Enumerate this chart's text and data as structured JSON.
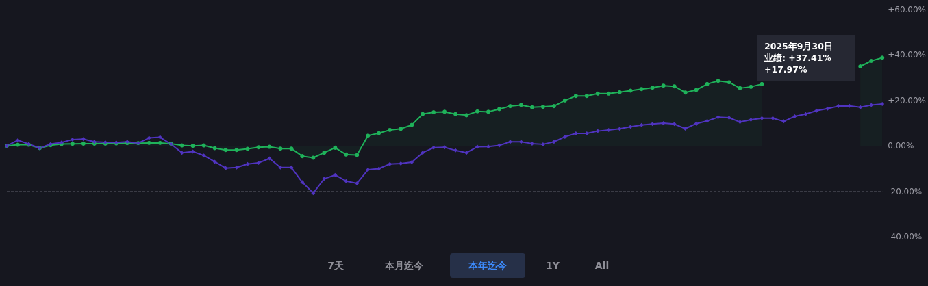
{
  "chart_data": {
    "type": "line",
    "categories": [
      null,
      null,
      null,
      null,
      null,
      null,
      null,
      null,
      null,
      null,
      null,
      null,
      null,
      null,
      null,
      null,
      null,
      null,
      null,
      null,
      null,
      null,
      null,
      null,
      null,
      null,
      null,
      null,
      null,
      null,
      null,
      null,
      null,
      null,
      null,
      null,
      null,
      null,
      null,
      null,
      null,
      null,
      null,
      null,
      null,
      null,
      null,
      null,
      null,
      null,
      null,
      null,
      null,
      null,
      null,
      null,
      null,
      null,
      null,
      null,
      null,
      null,
      null,
      null,
      null,
      null,
      null,
      null,
      null,
      null,
      null,
      null,
      null,
      null,
      null,
      null,
      null,
      null,
      null,
      null,
      null
    ],
    "series": [
      {
        "type": "area",
        "color": "#1fb25a",
        "marker": "circle",
        "values": [
          0,
          0.5,
          0.5,
          -1,
          0.3,
          0.8,
          0.9,
          1,
          1,
          1,
          1.1,
          1.2,
          1.2,
          1.3,
          1.3,
          1,
          0.2,
          0,
          0.2,
          -1,
          -1.8,
          -1.8,
          -1.3,
          -0.6,
          -0.4,
          -1.2,
          -1.2,
          -4.5,
          -5.2,
          -3,
          -0.8,
          -3.8,
          -4,
          4.5,
          5.6,
          7,
          7.5,
          9.2,
          14,
          14.8,
          15,
          14,
          13.5,
          15.2,
          15,
          16.2,
          17.5,
          18,
          17,
          17.2,
          17.5,
          20,
          22,
          22,
          23,
          23,
          23.6,
          24.3,
          25,
          25.6,
          26.5,
          26.2,
          23.5,
          24.6,
          27.2,
          28.6,
          28,
          25.4,
          26,
          27.2,
          null,
          null,
          null,
          null,
          null,
          null,
          null,
          null,
          35,
          37.41,
          38.8
        ]
      },
      {
        "color": "#5034c0",
        "marker": "diamond",
        "values": [
          0,
          2.5,
          0.8,
          -1,
          0.8,
          1.5,
          2.8,
          3,
          1.8,
          1.6,
          1.5,
          1.8,
          1.2,
          3.5,
          3.8,
          0.8,
          -3,
          -2.5,
          -4.2,
          -7,
          -9.8,
          -9.5,
          -8,
          -7.5,
          -5.5,
          -9.5,
          -9.5,
          -16,
          -20.8,
          -14.5,
          -12.8,
          -15.5,
          -16.5,
          -10.5,
          -10,
          -8,
          -7.8,
          -7.2,
          -3,
          -0.8,
          -0.6,
          -2,
          -3,
          -0.4,
          -0.3,
          0.2,
          1.8,
          1.8,
          1,
          0.7,
          1.8,
          4,
          5.5,
          5.5,
          6.5,
          7,
          7.5,
          8.4,
          9.2,
          9.6,
          10,
          9.6,
          7.6,
          9.8,
          11,
          12.6,
          12.4,
          10.5,
          11.5,
          12.2,
          12.2,
          10.8,
          13,
          14,
          15.5,
          16.4,
          17.5,
          17.6,
          17,
          17.97,
          18.4
        ]
      }
    ],
    "ylim": [
      -40,
      60
    ],
    "yticks": [
      {
        "value": -40,
        "label": "-40.00%"
      },
      {
        "value": -20,
        "label": "-20.00%"
      },
      {
        "value": 0,
        "label": "0.00%"
      },
      {
        "value": 20,
        "label": "+20.00%"
      },
      {
        "value": 40,
        "label": "+40.00%"
      },
      {
        "value": 60,
        "label": "+60.00%"
      }
    ],
    "grid": "y",
    "annotations": [
      "2025年9月30日",
      "业绩: +37.41%",
      "+17.97%",
      "7天",
      "本月迄今",
      "本年迄今",
      "1Y",
      "All"
    ]
  }
}
